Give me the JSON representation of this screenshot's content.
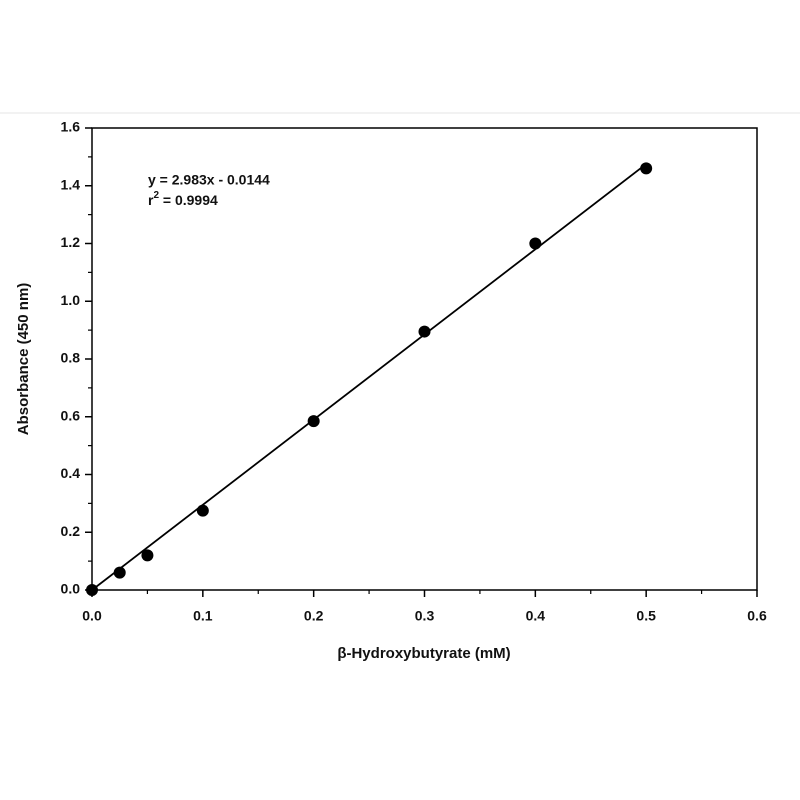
{
  "chart_data": {
    "type": "scatter",
    "xlabel": "β-Hydroxybutyrate (mM)",
    "ylabel": "Absorbance (450 nm)",
    "x": [
      0,
      0.025,
      0.05,
      0.1,
      0.2,
      0.3,
      0.4,
      0.5
    ],
    "values": [
      0,
      0.06,
      0.12,
      0.275,
      0.585,
      0.895,
      1.2,
      1.46
    ],
    "color": "#000000",
    "fit_line": {
      "x": [
        0,
        0.5
      ],
      "values": [
        0,
        1.475
      ]
    },
    "annotation": {
      "equation": "y = 2.983x - 0.0144",
      "r_base": "r",
      "r_sup": "2",
      "r_rest": " = 0.9994"
    },
    "xlim": [
      0,
      0.6
    ],
    "ylim": [
      0,
      1.6
    ],
    "xticks": [
      {
        "value": 0,
        "label": "0.0"
      },
      0.1,
      0.2,
      0.3,
      0.4,
      0.5,
      0.6
    ],
    "yticks": [
      {
        "value": 0,
        "label": "0.0"
      },
      0.2,
      0.4,
      0.6,
      0.8,
      {
        "value": 1,
        "label": "1.0"
      },
      1.2,
      1.4,
      1.6
    ],
    "xminorticks": [
      0.05,
      0.15,
      0.25,
      0.35,
      0.45,
      0.55
    ],
    "yminorticks": [
      0.1,
      0.3,
      0.5,
      0.7,
      0.9,
      1.1,
      1.3,
      1.5
    ],
    "grid": false
  }
}
